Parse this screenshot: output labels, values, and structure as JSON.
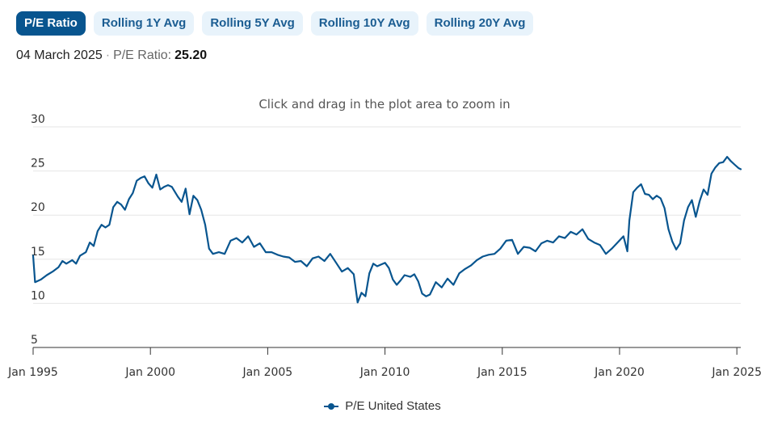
{
  "tabs": [
    {
      "label": "P/E Ratio",
      "active": true
    },
    {
      "label": "Rolling 1Y Avg",
      "active": false
    },
    {
      "label": "Rolling 5Y Avg",
      "active": false
    },
    {
      "label": "Rolling 10Y Avg",
      "active": false
    },
    {
      "label": "Rolling 20Y Avg",
      "active": false
    }
  ],
  "readout": {
    "date": "04 March 2025",
    "separator": "·",
    "label": "P/E Ratio:",
    "value": "25.20"
  },
  "colors": {
    "accent": "#08558f",
    "tab_bg": "#e8f3fb",
    "grid": "#e6e6e6"
  },
  "chart_data": {
    "type": "line",
    "title": "",
    "subtitle": "Click and drag in the plot area to zoom in",
    "xlabel": "",
    "ylabel": "",
    "ylim": [
      5,
      30
    ],
    "xlim": [
      "1995-01",
      "2025-03"
    ],
    "grid": true,
    "legend_position": "bottom-center",
    "y_ticks": [
      "5",
      "10",
      "15",
      "20",
      "25",
      "30"
    ],
    "x_ticks": [
      "Jan 1995",
      "Jan 2000",
      "Jan 2005",
      "Jan 2010",
      "Jan 2015",
      "Jan 2020",
      "Jan 2025"
    ],
    "series": [
      {
        "name": "P/E United States",
        "color": "#08558f",
        "points": [
          [
            "1995-01",
            15.4
          ],
          [
            "1995-02",
            12.4
          ],
          [
            "1995-05",
            12.7
          ],
          [
            "1995-08",
            13.2
          ],
          [
            "1995-11",
            13.6
          ],
          [
            "1996-02",
            14.1
          ],
          [
            "1996-04",
            14.8
          ],
          [
            "1996-06",
            14.5
          ],
          [
            "1996-09",
            14.9
          ],
          [
            "1996-11",
            14.5
          ],
          [
            "1997-01",
            15.4
          ],
          [
            "1997-04",
            15.8
          ],
          [
            "1997-06",
            16.9
          ],
          [
            "1997-08",
            16.5
          ],
          [
            "1997-10",
            18.2
          ],
          [
            "1997-12",
            18.9
          ],
          [
            "1998-02",
            18.6
          ],
          [
            "1998-04",
            18.9
          ],
          [
            "1998-06",
            20.9
          ],
          [
            "1998-08",
            21.5
          ],
          [
            "1998-10",
            21.2
          ],
          [
            "1998-12",
            20.6
          ],
          [
            "1999-02",
            21.8
          ],
          [
            "1999-04",
            22.5
          ],
          [
            "1999-06",
            23.9
          ],
          [
            "1999-08",
            24.2
          ],
          [
            "1999-10",
            24.4
          ],
          [
            "1999-12",
            23.6
          ],
          [
            "2000-02",
            23.1
          ],
          [
            "2000-04",
            24.6
          ],
          [
            "2000-06",
            22.9
          ],
          [
            "2000-08",
            23.2
          ],
          [
            "2000-10",
            23.4
          ],
          [
            "2000-12",
            23.2
          ],
          [
            "2001-03",
            22.1
          ],
          [
            "2001-05",
            21.5
          ],
          [
            "2001-07",
            23.0
          ],
          [
            "2001-09",
            20.1
          ],
          [
            "2001-11",
            22.2
          ],
          [
            "2002-01",
            21.7
          ],
          [
            "2002-03",
            20.6
          ],
          [
            "2002-05",
            18.9
          ],
          [
            "2002-07",
            16.2
          ],
          [
            "2002-09",
            15.6
          ],
          [
            "2002-12",
            15.8
          ],
          [
            "2003-03",
            15.6
          ],
          [
            "2003-06",
            17.1
          ],
          [
            "2003-09",
            17.4
          ],
          [
            "2003-12",
            16.9
          ],
          [
            "2004-03",
            17.6
          ],
          [
            "2004-06",
            16.4
          ],
          [
            "2004-09",
            16.8
          ],
          [
            "2004-12",
            15.8
          ],
          [
            "2005-03",
            15.8
          ],
          [
            "2005-06",
            15.5
          ],
          [
            "2005-09",
            15.3
          ],
          [
            "2005-12",
            15.2
          ],
          [
            "2006-03",
            14.7
          ],
          [
            "2006-06",
            14.8
          ],
          [
            "2006-09",
            14.2
          ],
          [
            "2006-12",
            15.1
          ],
          [
            "2007-03",
            15.3
          ],
          [
            "2007-06",
            14.8
          ],
          [
            "2007-09",
            15.6
          ],
          [
            "2007-12",
            14.6
          ],
          [
            "2008-03",
            13.6
          ],
          [
            "2008-06",
            14.0
          ],
          [
            "2008-09",
            13.3
          ],
          [
            "2008-11",
            10.1
          ],
          [
            "2009-01",
            11.2
          ],
          [
            "2009-03",
            10.8
          ],
          [
            "2009-05",
            13.4
          ],
          [
            "2009-07",
            14.5
          ],
          [
            "2009-09",
            14.2
          ],
          [
            "2009-11",
            14.4
          ],
          [
            "2010-01",
            14.6
          ],
          [
            "2010-03",
            14.0
          ],
          [
            "2010-05",
            12.7
          ],
          [
            "2010-07",
            12.1
          ],
          [
            "2010-09",
            12.6
          ],
          [
            "2010-11",
            13.2
          ],
          [
            "2011-02",
            13.0
          ],
          [
            "2011-04",
            13.3
          ],
          [
            "2011-06",
            12.5
          ],
          [
            "2011-08",
            11.1
          ],
          [
            "2011-10",
            10.8
          ],
          [
            "2011-12",
            11.0
          ],
          [
            "2012-03",
            12.4
          ],
          [
            "2012-06",
            11.8
          ],
          [
            "2012-09",
            12.8
          ],
          [
            "2012-12",
            12.1
          ],
          [
            "2013-03",
            13.4
          ],
          [
            "2013-06",
            13.9
          ],
          [
            "2013-09",
            14.3
          ],
          [
            "2013-12",
            14.9
          ],
          [
            "2014-03",
            15.3
          ],
          [
            "2014-06",
            15.5
          ],
          [
            "2014-09",
            15.6
          ],
          [
            "2014-12",
            16.2
          ],
          [
            "2015-03",
            17.1
          ],
          [
            "2015-06",
            17.2
          ],
          [
            "2015-09",
            15.6
          ],
          [
            "2015-12",
            16.4
          ],
          [
            "2016-03",
            16.3
          ],
          [
            "2016-06",
            15.9
          ],
          [
            "2016-09",
            16.8
          ],
          [
            "2016-12",
            17.1
          ],
          [
            "2017-03",
            16.9
          ],
          [
            "2017-06",
            17.6
          ],
          [
            "2017-09",
            17.4
          ],
          [
            "2017-12",
            18.1
          ],
          [
            "2018-03",
            17.8
          ],
          [
            "2018-06",
            18.4
          ],
          [
            "2018-09",
            17.3
          ],
          [
            "2018-12",
            16.9
          ],
          [
            "2019-03",
            16.6
          ],
          [
            "2019-06",
            15.6
          ],
          [
            "2019-09",
            16.2
          ],
          [
            "2019-12",
            16.9
          ],
          [
            "2020-03",
            17.6
          ],
          [
            "2020-05",
            15.9
          ],
          [
            "2020-06",
            19.4
          ],
          [
            "2020-08",
            22.6
          ],
          [
            "2020-10",
            23.1
          ],
          [
            "2020-12",
            23.5
          ],
          [
            "2021-02",
            22.4
          ],
          [
            "2021-04",
            22.3
          ],
          [
            "2021-06",
            21.8
          ],
          [
            "2021-08",
            22.2
          ],
          [
            "2021-10",
            21.9
          ],
          [
            "2021-12",
            20.8
          ],
          [
            "2022-02",
            18.4
          ],
          [
            "2022-04",
            17.0
          ],
          [
            "2022-06",
            16.1
          ],
          [
            "2022-08",
            16.8
          ],
          [
            "2022-10",
            19.4
          ],
          [
            "2022-12",
            20.9
          ],
          [
            "2023-02",
            21.7
          ],
          [
            "2023-04",
            19.8
          ],
          [
            "2023-06",
            21.6
          ],
          [
            "2023-08",
            22.9
          ],
          [
            "2023-10",
            22.3
          ],
          [
            "2023-12",
            24.7
          ],
          [
            "2024-02",
            25.4
          ],
          [
            "2024-04",
            25.9
          ],
          [
            "2024-06",
            26.0
          ],
          [
            "2024-08",
            26.6
          ],
          [
            "2024-10",
            26.1
          ],
          [
            "2024-12",
            25.7
          ],
          [
            "2025-02",
            25.3
          ],
          [
            "2025-03",
            25.2
          ]
        ]
      }
    ]
  }
}
